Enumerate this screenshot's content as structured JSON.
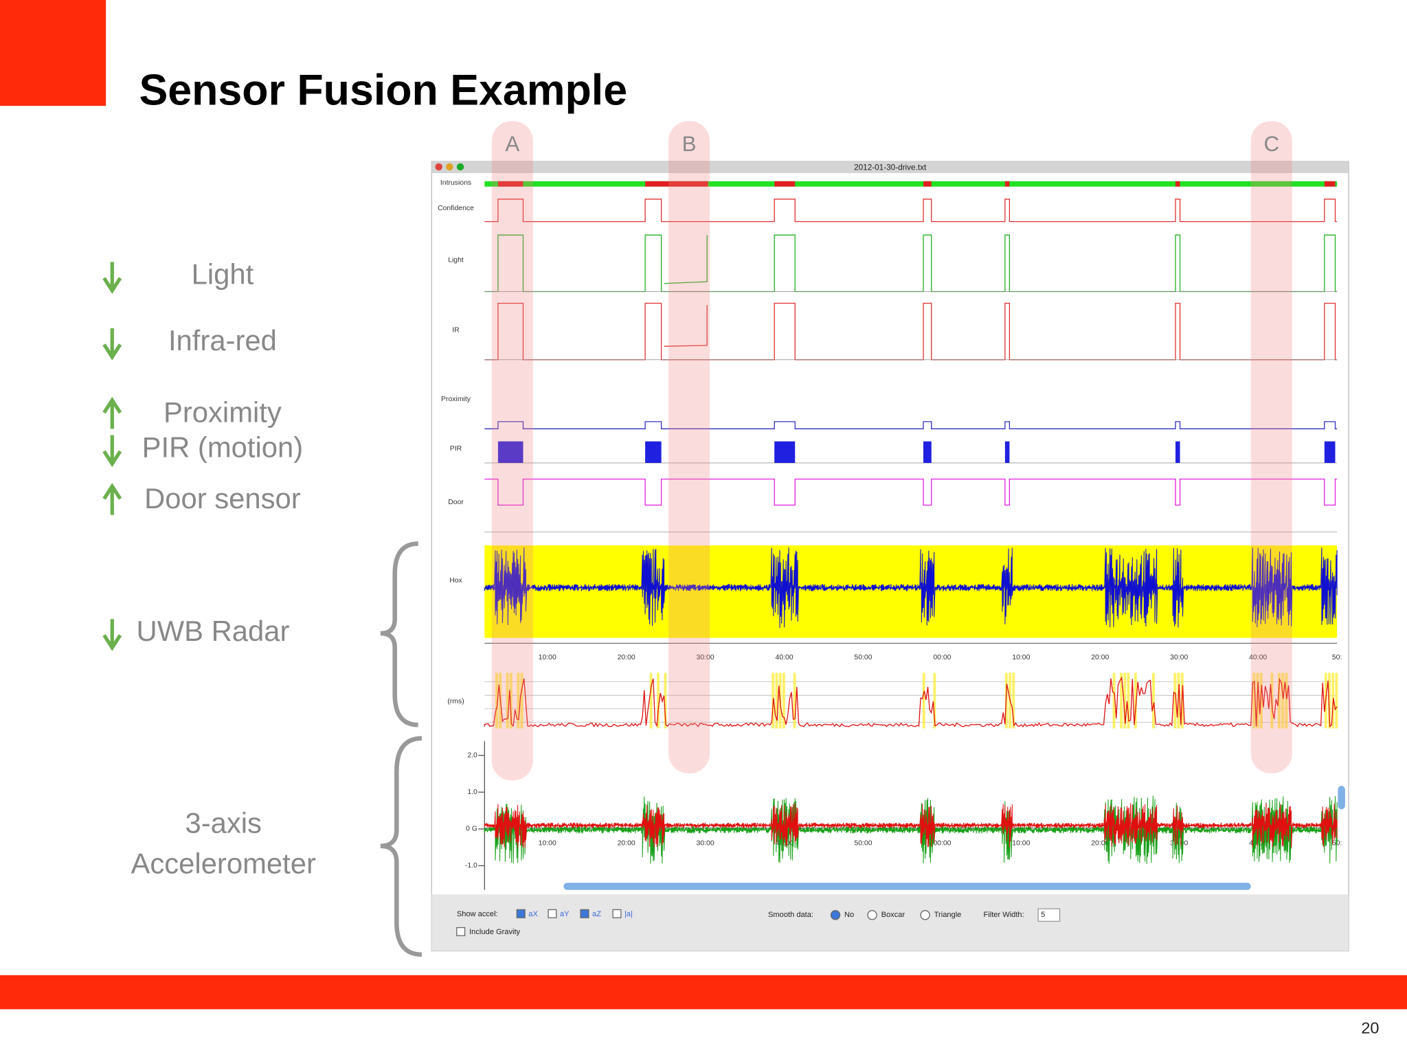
{
  "slide": {
    "title": "Sensor Fusion Example",
    "page_number": "20"
  },
  "sensors": [
    {
      "label": "Light",
      "direction": "down"
    },
    {
      "label": "Infra-red",
      "direction": "down"
    },
    {
      "label": "Proximity",
      "direction": "up"
    },
    {
      "label": "PIR (motion)",
      "direction": "down"
    },
    {
      "label": "Door sensor",
      "direction": "up"
    },
    {
      "label": "UWB Radar",
      "direction": "down"
    }
  ],
  "accel_label": [
    "3-axis",
    "Accelerometer"
  ],
  "markers": [
    "A",
    "B",
    "C"
  ],
  "window": {
    "title": "2012-01-30-drive.txt",
    "tracks": [
      "Intrusions",
      "Confidence",
      "Light",
      "IR",
      "Proximity",
      "PIR",
      "Door",
      "Hox",
      "(rms)"
    ],
    "time_labels": [
      "10:00",
      "20:00",
      "30:00",
      "40:00",
      "50:00",
      "00:00",
      "10:00",
      "20:00",
      "30:00",
      "40:00",
      "50:"
    ],
    "accel_ticks": [
      "2.0",
      "1.0",
      "0 G",
      "-1.0"
    ],
    "controls": {
      "show_accel": "Show accel:",
      "checks": [
        "aX",
        "aY",
        "aZ",
        "|a|"
      ],
      "include_gravity": "Include Gravity",
      "smooth": "Smooth data:",
      "options": [
        "No",
        "Boxcar",
        "Triangle"
      ],
      "filter_width": "Filter Width:",
      "filter_value": "5"
    }
  }
}
